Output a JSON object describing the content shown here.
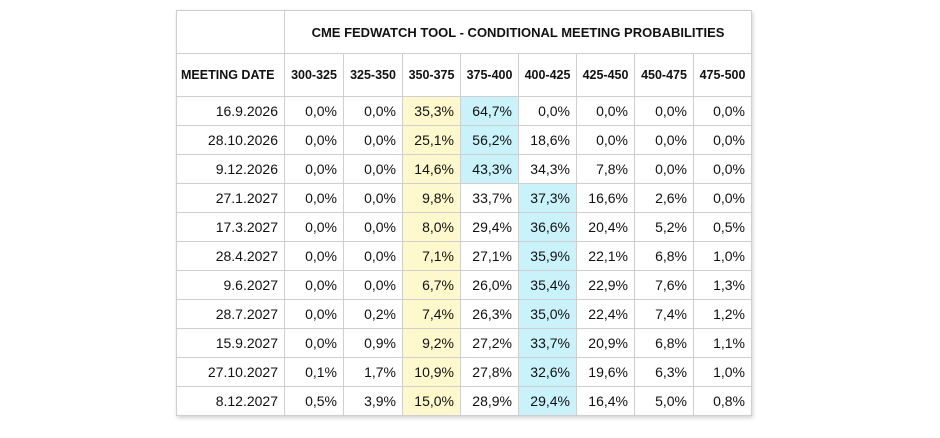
{
  "chart_data": {
    "type": "table",
    "title": "CME FEDWATCH TOOL - CONDITIONAL MEETING PROBABILITIES",
    "date_header": "MEETING DATE",
    "columns": [
      "300-325",
      "325-350",
      "350-375",
      "375-400",
      "400-425",
      "425-450",
      "450-475",
      "475-500"
    ],
    "rows": [
      {
        "date": "16.9.2026",
        "values": [
          "0,0%",
          "0,0%",
          "35,3%",
          "64,7%",
          "0,0%",
          "0,0%",
          "0,0%",
          "0,0%"
        ],
        "highlight": {
          "yellow": 2,
          "cyan": 3
        }
      },
      {
        "date": "28.10.2026",
        "values": [
          "0,0%",
          "0,0%",
          "25,1%",
          "56,2%",
          "18,6%",
          "0,0%",
          "0,0%",
          "0,0%"
        ],
        "highlight": {
          "yellow": 2,
          "cyan": 3
        }
      },
      {
        "date": "9.12.2026",
        "values": [
          "0,0%",
          "0,0%",
          "14,6%",
          "43,3%",
          "34,3%",
          "7,8%",
          "0,0%",
          "0,0%"
        ],
        "highlight": {
          "yellow": 2,
          "cyan": 3
        }
      },
      {
        "date": "27.1.2027",
        "values": [
          "0,0%",
          "0,0%",
          "9,8%",
          "33,7%",
          "37,3%",
          "16,6%",
          "2,6%",
          "0,0%"
        ],
        "highlight": {
          "yellow": 2,
          "cyan": 4
        }
      },
      {
        "date": "17.3.2027",
        "values": [
          "0,0%",
          "0,0%",
          "8,0%",
          "29,4%",
          "36,6%",
          "20,4%",
          "5,2%",
          "0,5%"
        ],
        "highlight": {
          "yellow": 2,
          "cyan": 4
        }
      },
      {
        "date": "28.4.2027",
        "values": [
          "0,0%",
          "0,0%",
          "7,1%",
          "27,1%",
          "35,9%",
          "22,1%",
          "6,8%",
          "1,0%"
        ],
        "highlight": {
          "yellow": 2,
          "cyan": 4
        }
      },
      {
        "date": "9.6.2027",
        "values": [
          "0,0%",
          "0,0%",
          "6,7%",
          "26,0%",
          "35,4%",
          "22,9%",
          "7,6%",
          "1,3%"
        ],
        "highlight": {
          "yellow": 2,
          "cyan": 4
        }
      },
      {
        "date": "28.7.2027",
        "values": [
          "0,0%",
          "0,2%",
          "7,4%",
          "26,3%",
          "35,0%",
          "22,4%",
          "7,4%",
          "1,2%"
        ],
        "highlight": {
          "yellow": 2,
          "cyan": 4
        }
      },
      {
        "date": "15.9.2027",
        "values": [
          "0,0%",
          "0,9%",
          "9,2%",
          "27,2%",
          "33,7%",
          "20,9%",
          "6,8%",
          "1,1%"
        ],
        "highlight": {
          "yellow": 2,
          "cyan": 4
        }
      },
      {
        "date": "27.10.2027",
        "values": [
          "0,1%",
          "1,7%",
          "10,9%",
          "27,8%",
          "32,6%",
          "19,6%",
          "6,3%",
          "1,0%"
        ],
        "highlight": {
          "yellow": 2,
          "cyan": 4
        }
      },
      {
        "date": "8.12.2027",
        "values": [
          "0,5%",
          "3,9%",
          "15,0%",
          "28,9%",
          "29,4%",
          "16,4%",
          "5,0%",
          "0,8%"
        ],
        "highlight": {
          "yellow": 2,
          "cyan": 4
        }
      }
    ]
  },
  "colors": {
    "yellow_highlight": "#fdf9cc",
    "cyan_highlight": "#c9f2fb",
    "border": "#cfcfcf"
  }
}
